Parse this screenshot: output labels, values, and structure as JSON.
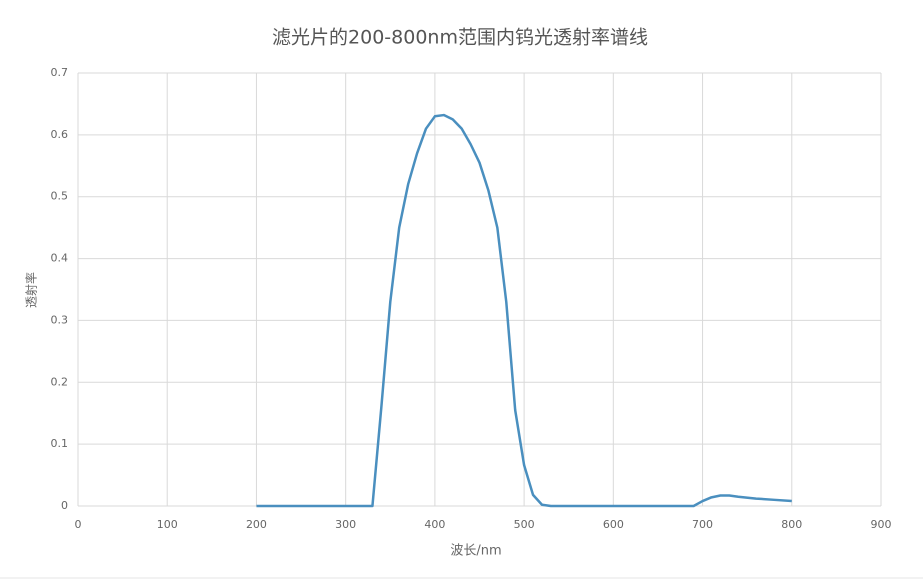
{
  "chart_data": {
    "type": "line",
    "title": "滤光片的200-800nm范围内钨光透射率谱线",
    "xlabel": "波长/nm",
    "ylabel": "透射率",
    "x": [
      200,
      250,
      300,
      330,
      340,
      350,
      360,
      370,
      380,
      390,
      400,
      410,
      420,
      430,
      440,
      450,
      460,
      470,
      480,
      490,
      500,
      510,
      520,
      530,
      600,
      690,
      700,
      710,
      720,
      730,
      740,
      760,
      780,
      800
    ],
    "series": [
      {
        "name": "透射率",
        "color": "#4a8fbf",
        "values": [
          0,
          0,
          0,
          0,
          0.16,
          0.33,
          0.45,
          0.52,
          0.57,
          0.61,
          0.63,
          0.632,
          0.625,
          0.61,
          0.585,
          0.555,
          0.51,
          0.45,
          0.33,
          0.155,
          0.066,
          0.018,
          0.002,
          0,
          0,
          0,
          0.008,
          0.014,
          0.017,
          0.017,
          0.015,
          0.012,
          0.01,
          0.008
        ]
      }
    ],
    "xlim": [
      0,
      900
    ],
    "xticks": [
      0,
      100,
      200,
      300,
      400,
      500,
      600,
      700,
      800,
      900
    ],
    "ylim": [
      0,
      0.7
    ],
    "yticks": [
      0,
      0.1,
      0.2,
      0.3,
      0.4,
      0.5,
      0.6,
      0.7
    ],
    "grid": true
  }
}
